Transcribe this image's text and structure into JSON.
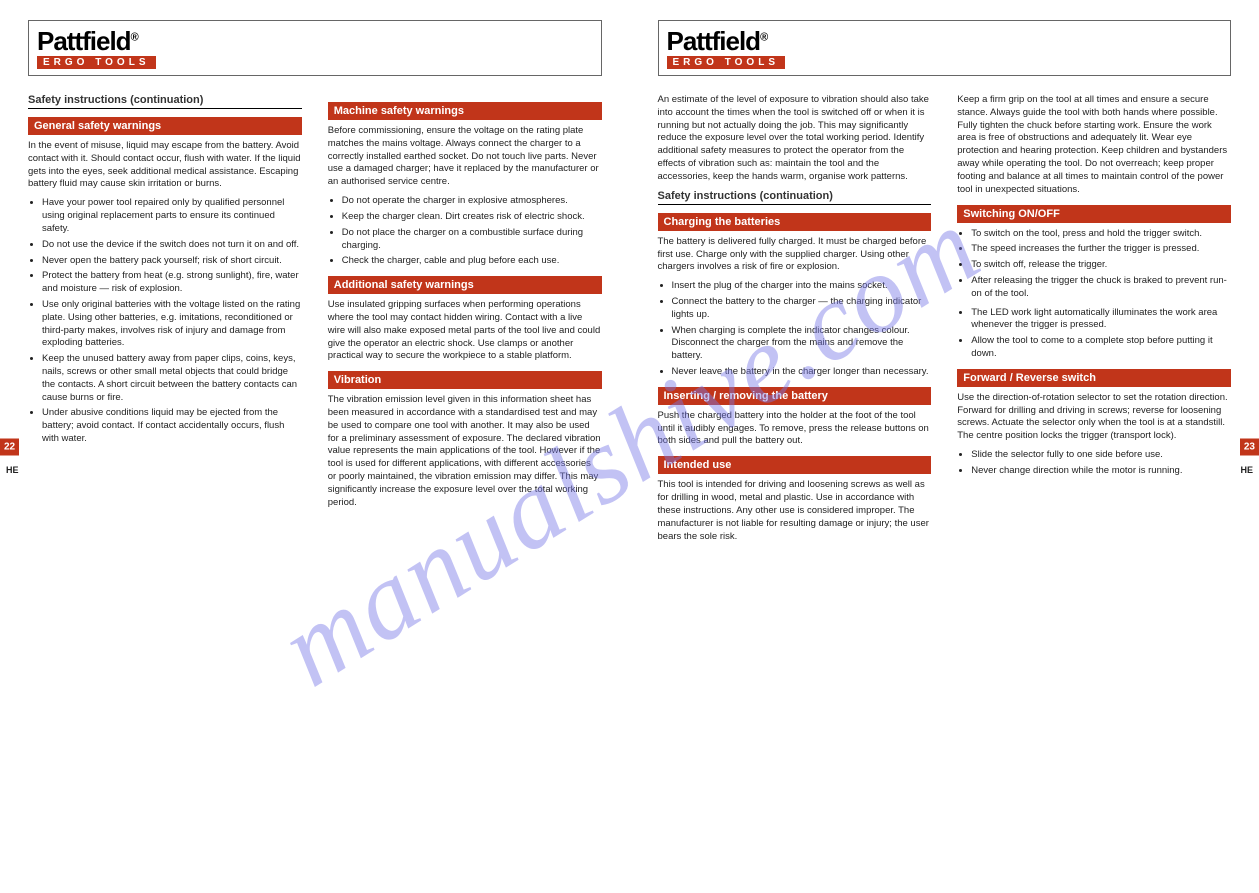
{
  "brand": {
    "name": "Pattfield",
    "reg": "®",
    "tagline": "ERGO TOOLS"
  },
  "watermark": "manualshive.com",
  "left_page": {
    "page_num": "22",
    "lang_label": "HE",
    "col1": {
      "cont_title": "Safety instructions (continuation)",
      "section_bar": "General safety warnings",
      "intro": "In the event of misuse, liquid may escape from the battery. Avoid contact with it. Should contact occur, flush with water. If the liquid gets into the eyes, seek additional medical assistance. Escaping battery fluid may cause skin irritation or burns.",
      "points": [
        "Have your power tool repaired only by qualified personnel using original replacement parts to ensure its continued safety.",
        "Do not use the device if the switch does not turn it on and off.",
        "Never open the battery pack yourself; risk of short circuit.",
        "Protect the battery from heat (e.g. strong sunlight), fire, water and moisture — risk of explosion.",
        "Use only original batteries with the voltage listed on the rating plate. Using other batteries, e.g. imitations, reconditioned or third-party makes, involves risk of injury and damage from exploding batteries.",
        "Keep the unused battery away from paper clips, coins, keys, nails, screws or other small metal objects that could bridge the contacts. A short circuit between the battery contacts can cause burns or fire.",
        "Under abusive conditions liquid may be ejected from the battery; avoid contact. If contact accidentally occurs, flush with water."
      ]
    },
    "col2": {
      "section_bar1": "Machine safety warnings",
      "text1": "Before commissioning, ensure the voltage on the rating plate matches the mains voltage. Always connect the charger to a correctly installed earthed socket. Do not touch live parts. Never use a damaged charger; have it replaced by the manufacturer or an authorised service centre.",
      "items1": [
        "Do not operate the charger in explosive atmospheres.",
        "Keep the charger clean. Dirt creates risk of electric shock.",
        "Do not place the charger on a combustible surface during charging.",
        "Check the charger, cable and plug before each use."
      ],
      "section_bar2": "Additional safety warnings",
      "text2": "Use insulated gripping surfaces when performing operations where the tool may contact hidden wiring. Contact with a live wire will also make exposed metal parts of the tool live and could give the operator an electric shock. Use clamps or another practical way to secure the workpiece to a stable platform.",
      "section_bar3": "Vibration",
      "text3": "The vibration emission level given in this information sheet has been measured in accordance with a standardised test and may be used to compare one tool with another. It may also be used for a preliminary assessment of exposure. The declared vibration value represents the main applications of the tool. However if the tool is used for different applications, with different accessories or poorly maintained, the vibration emission may differ. This may significantly increase the exposure level over the total working period."
    }
  },
  "right_page": {
    "page_num": "23",
    "lang_label": "HE",
    "col1": {
      "top_para": "An estimate of the level of exposure to vibration should also take into account the times when the tool is switched off or when it is running but not actually doing the job. This may significantly reduce the exposure level over the total working period. Identify additional safety measures to protect the operator from the effects of vibration such as: maintain the tool and the accessories, keep the hands warm, organise work patterns.",
      "cont_title": "Safety instructions (continuation)",
      "section_bar1": "Charging the batteries",
      "text1": "The battery is delivered fully charged. It must be charged before first use. Charge only with the supplied charger. Using other chargers involves a risk of fire or explosion.",
      "items1": [
        "Insert the plug of the charger into the mains socket.",
        "Connect the battery to the charger — the charging indicator lights up.",
        "When charging is complete the indicator changes colour. Disconnect the charger from the mains and remove the battery.",
        "Never leave the battery in the charger longer than necessary."
      ],
      "section_bar2": "Inserting / removing the battery",
      "text2": "Push the charged battery into the holder at the foot of the tool until it audibly engages. To remove, press the release buttons on both sides and pull the battery out.",
      "section_bar3": "Intended use",
      "text3": "This tool is intended for driving and loosening screws as well as for drilling in wood, metal and plastic. Use in accordance with these instructions. Any other use is considered improper. The manufacturer is not liable for resulting damage or injury; the user bears the sole risk."
    },
    "col2": {
      "top_para": "Keep a firm grip on the tool at all times and ensure a secure stance. Always guide the tool with both hands where possible. Fully tighten the chuck before starting work. Ensure the work area is free of obstructions and adequately lit. Wear eye protection and hearing protection. Keep children and bystanders away while operating the tool. Do not overreach; keep proper footing and balance at all times to maintain control of the power tool in unexpected situations.",
      "section_bar1": "Switching ON/OFF",
      "items1": [
        "To switch on the tool, press and hold the trigger switch.",
        "The speed increases the further the trigger is pressed.",
        "To switch off, release the trigger.",
        "After releasing the trigger the chuck is braked to prevent run-on of the tool."
      ],
      "items2": [
        "The LED work light automatically illuminates the work area whenever the trigger is pressed.",
        "Allow the tool to come to a complete stop before putting it down."
      ],
      "section_bar2": "Forward / Reverse switch",
      "text2": "Use the direction-of-rotation selector to set the rotation direction. Forward for drilling and driving in screws; reverse for loosening screws. Actuate the selector only when the tool is at a standstill. The centre position locks the trigger (transport lock).",
      "items3": [
        "Slide the selector fully to one side before use.",
        "Never change direction while the motor is running."
      ]
    }
  }
}
